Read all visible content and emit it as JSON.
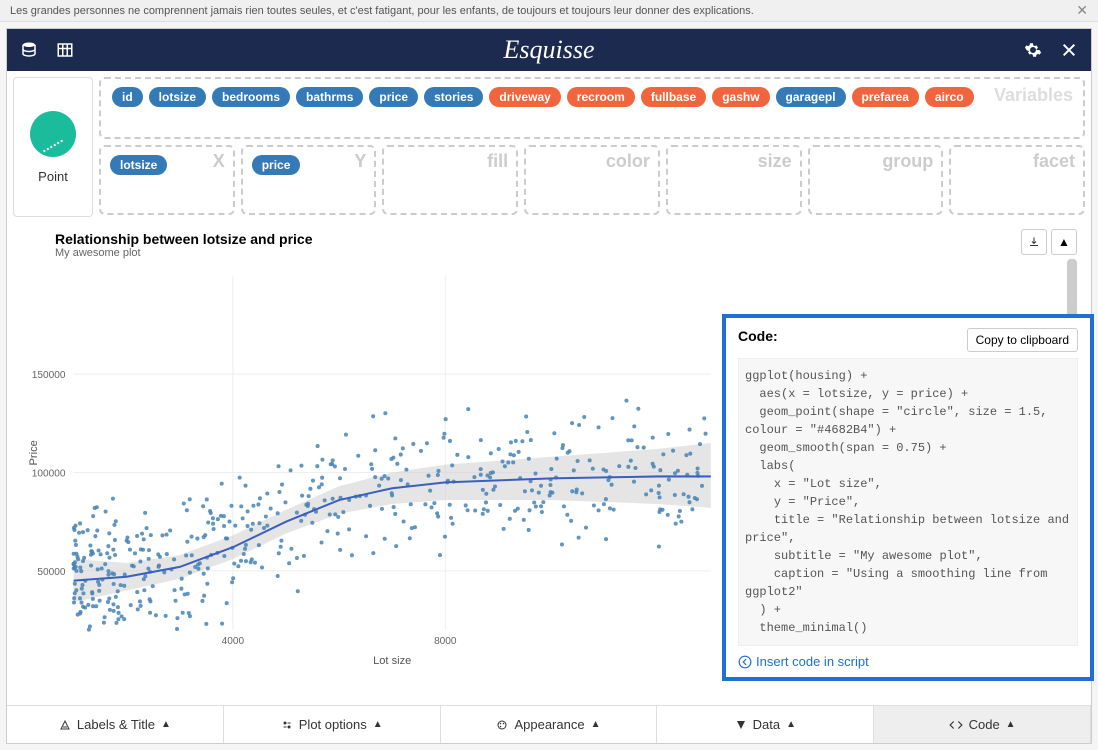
{
  "banner": {
    "text": "Les grandes personnes ne comprennent jamais rien toutes seules, et c'est fatigant, pour les enfants, de toujours et toujours leur donner des explications."
  },
  "app_title": "Esquisse",
  "geom": {
    "label": "Point"
  },
  "variables_label": "Variables",
  "variables": [
    {
      "name": "id",
      "type": "num"
    },
    {
      "name": "lotsize",
      "type": "num"
    },
    {
      "name": "bedrooms",
      "type": "num"
    },
    {
      "name": "bathrms",
      "type": "num"
    },
    {
      "name": "price",
      "type": "num"
    },
    {
      "name": "stories",
      "type": "num"
    },
    {
      "name": "driveway",
      "type": "cat"
    },
    {
      "name": "recroom",
      "type": "cat"
    },
    {
      "name": "fullbase",
      "type": "cat"
    },
    {
      "name": "gashw",
      "type": "cat"
    },
    {
      "name": "garagepl",
      "type": "num"
    },
    {
      "name": "prefarea",
      "type": "cat"
    },
    {
      "name": "airco",
      "type": "cat"
    }
  ],
  "aes": {
    "x": {
      "label": "X",
      "var": "lotsize"
    },
    "y": {
      "label": "Y",
      "var": "price"
    },
    "fill": {
      "label": "fill",
      "var": null
    },
    "color": {
      "label": "color",
      "var": null
    },
    "size": {
      "label": "size",
      "var": null
    },
    "group": {
      "label": "group",
      "var": null
    },
    "facet": {
      "label": "facet",
      "var": null
    }
  },
  "plot": {
    "title": "Relationship between lotsize and price",
    "subtitle": "My awesome plot",
    "xlabel": "Lot size",
    "ylabel": "Price",
    "point_color": "#4682B4",
    "smooth_color": "#3b5fc0",
    "ribbon_color": "#cccccc",
    "background": "#ffffff",
    "grid_color": "#eeeeee",
    "xlim": [
      1000,
      13000
    ],
    "ylim": [
      20000,
      200000
    ],
    "xticks": [
      4000,
      8000
    ],
    "yticks": [
      50000,
      100000,
      150000
    ],
    "smooth_line": [
      [
        1000,
        45000
      ],
      [
        2000,
        47000
      ],
      [
        3000,
        52000
      ],
      [
        4000,
        62000
      ],
      [
        5000,
        75000
      ],
      [
        6000,
        86000
      ],
      [
        7000,
        92000
      ],
      [
        8000,
        95000
      ],
      [
        9000,
        96000
      ],
      [
        10000,
        97000
      ],
      [
        11000,
        97500
      ],
      [
        12000,
        98000
      ],
      [
        13000,
        98000
      ]
    ],
    "ribbon_upper": [
      [
        1000,
        56000
      ],
      [
        2000,
        54000
      ],
      [
        3000,
        58000
      ],
      [
        4000,
        68000
      ],
      [
        5000,
        81000
      ],
      [
        6000,
        93000
      ],
      [
        7000,
        100000
      ],
      [
        8000,
        104000
      ],
      [
        9000,
        106000
      ],
      [
        10000,
        108000
      ],
      [
        11000,
        110000
      ],
      [
        12000,
        112000
      ],
      [
        13000,
        115000
      ]
    ],
    "ribbon_lower": [
      [
        1000,
        34000
      ],
      [
        2000,
        40000
      ],
      [
        3000,
        46000
      ],
      [
        4000,
        56000
      ],
      [
        5000,
        69000
      ],
      [
        6000,
        79000
      ],
      [
        7000,
        84000
      ],
      [
        8000,
        86000
      ],
      [
        9000,
        86000
      ],
      [
        10000,
        86000
      ],
      [
        11000,
        85000
      ],
      [
        12000,
        84000
      ],
      [
        13000,
        82000
      ]
    ],
    "n_points": 520,
    "seed": 42
  },
  "code_panel": {
    "title": "Code:",
    "copy_label": "Copy to clipboard",
    "code": "ggplot(housing) +\n  aes(x = lotsize, y = price) +\n  geom_point(shape = \"circle\", size = 1.5, colour = \"#4682B4\") +\n  geom_smooth(span = 0.75) +\n  labs(\n    x = \"Lot size\",\n    y = \"Price\",\n    title = \"Relationship between lotsize and price\",\n    subtitle = \"My awesome plot\",\n    caption = \"Using a smoothing line from ggplot2\"\n  ) +\n  theme_minimal()",
    "insert_label": "Insert code in script"
  },
  "tabs": {
    "labels_title": "Labels & Title",
    "plot_options": "Plot options",
    "appearance": "Appearance",
    "data": "Data",
    "code": "Code"
  }
}
